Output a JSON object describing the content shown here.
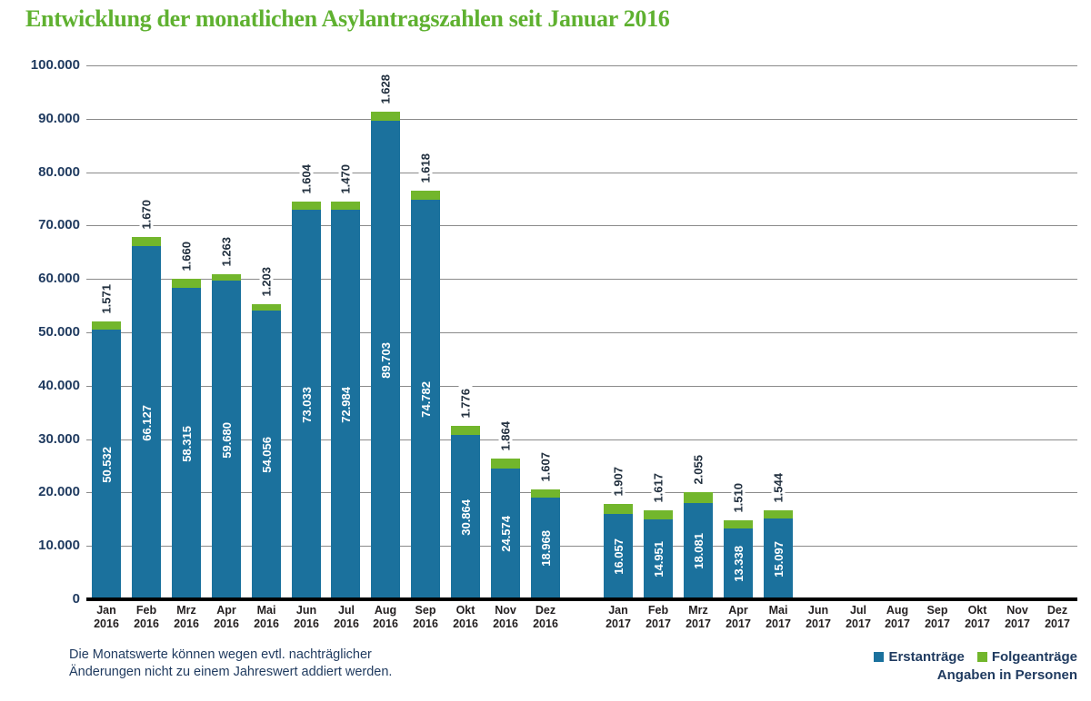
{
  "title": "Entwicklung der monatlichen Asylantragszahlen seit Januar 2016",
  "colors": {
    "title_green": "#5fb130",
    "bar_blue": "#1b719d",
    "bar_green": "#72b62c",
    "y_label_navy": "#1f3a5f",
    "top_label_navy": "#22303f",
    "x_label_dark": "#231f20",
    "gridline_gray": "#8a8a8a",
    "axis_black": "#000000",
    "footnote_navy": "#1f3a5f"
  },
  "y_axis": {
    "ticks": [
      "100.000",
      "90.000",
      "80.000",
      "70.000",
      "60.000",
      "50.000",
      "40.000",
      "30.000",
      "20.000",
      "10.000",
      "0"
    ]
  },
  "months": [
    {
      "month": "Jan",
      "year": "2016"
    },
    {
      "month": "Feb",
      "year": "2016"
    },
    {
      "month": "Mrz",
      "year": "2016"
    },
    {
      "month": "Apr",
      "year": "2016"
    },
    {
      "month": "Mai",
      "year": "2016"
    },
    {
      "month": "Jun",
      "year": "2016"
    },
    {
      "month": "Jul",
      "year": "2016"
    },
    {
      "month": "Aug",
      "year": "2016"
    },
    {
      "month": "Sep",
      "year": "2016"
    },
    {
      "month": "Okt",
      "year": "2016"
    },
    {
      "month": "Nov",
      "year": "2016"
    },
    {
      "month": "Dez",
      "year": "2016"
    },
    {
      "month": "Jan",
      "year": "2017"
    },
    {
      "month": "Feb",
      "year": "2017"
    },
    {
      "month": "Mrz",
      "year": "2017"
    },
    {
      "month": "Apr",
      "year": "2017"
    },
    {
      "month": "Mai",
      "year": "2017"
    },
    {
      "month": "Jun",
      "year": "2017"
    },
    {
      "month": "Jul",
      "year": "2017"
    },
    {
      "month": "Aug",
      "year": "2017"
    },
    {
      "month": "Sep",
      "year": "2017"
    },
    {
      "month": "Okt",
      "year": "2017"
    },
    {
      "month": "Nov",
      "year": "2017"
    },
    {
      "month": "Dez",
      "year": "2017"
    }
  ],
  "chart_data": {
    "type": "bar",
    "stacked": true,
    "title": "Entwicklung der monatlichen Asylantragszahlen seit Januar 2016",
    "xlabel": "",
    "ylabel": "",
    "ylim": [
      0,
      100000
    ],
    "grid": true,
    "legend_position": "bottom-right",
    "unit": "Personen",
    "categories": [
      "Jan 2016",
      "Feb 2016",
      "Mrz 2016",
      "Apr 2016",
      "Mai 2016",
      "Jun 2016",
      "Jul 2016",
      "Aug 2016",
      "Sep 2016",
      "Okt 2016",
      "Nov 2016",
      "Dez 2016",
      "Jan 2017",
      "Feb 2017",
      "Mrz 2017",
      "Apr 2017",
      "Mai 2017",
      "Jun 2017",
      "Jul 2017",
      "Aug 2017",
      "Sep 2017",
      "Okt 2017",
      "Nov 2017",
      "Dez 2017"
    ],
    "series": [
      {
        "name": "Erstanträge",
        "color": "#1b719d",
        "values": [
          50532,
          66127,
          58315,
          59680,
          54056,
          73033,
          72984,
          89703,
          74782,
          30864,
          24574,
          18968,
          16057,
          14951,
          18081,
          13338,
          15097,
          null,
          null,
          null,
          null,
          null,
          null,
          null
        ],
        "labels": [
          "50.532",
          "66.127",
          "58.315",
          "59.680",
          "54.056",
          "73.033",
          "72.984",
          "89.703",
          "74.782",
          "30.864",
          "24.574",
          "18.968",
          "16.057",
          "14.951",
          "18.081",
          "13.338",
          "15.097",
          null,
          null,
          null,
          null,
          null,
          null,
          null
        ]
      },
      {
        "name": "Folgeanträge",
        "color": "#72b62c",
        "values": [
          1571,
          1670,
          1660,
          1263,
          1203,
          1604,
          1470,
          1628,
          1618,
          1776,
          1864,
          1607,
          1907,
          1617,
          2055,
          1510,
          1544,
          null,
          null,
          null,
          null,
          null,
          null,
          null
        ],
        "labels": [
          "1.571",
          "1.670",
          "1.660",
          "1.263",
          "1.203",
          "1.604",
          "1.470",
          "1.628",
          "1.618",
          "1.776",
          "1.864",
          "1.607",
          "1.907",
          "1.617",
          "2.055",
          "1.510",
          "1.544",
          null,
          null,
          null,
          null,
          null,
          null,
          null
        ]
      }
    ]
  },
  "footnote": {
    "line1": "Die Monatswerte können wegen evtl. nachträglicher",
    "line2": "Änderungen nicht zu einem Jahreswert addiert werden."
  },
  "legend": {
    "items": [
      {
        "label": "Erstanträge",
        "color": "#1b719d"
      },
      {
        "label": "Folgeanträge",
        "color": "#72b62c"
      }
    ],
    "note": "Angaben in Personen"
  }
}
